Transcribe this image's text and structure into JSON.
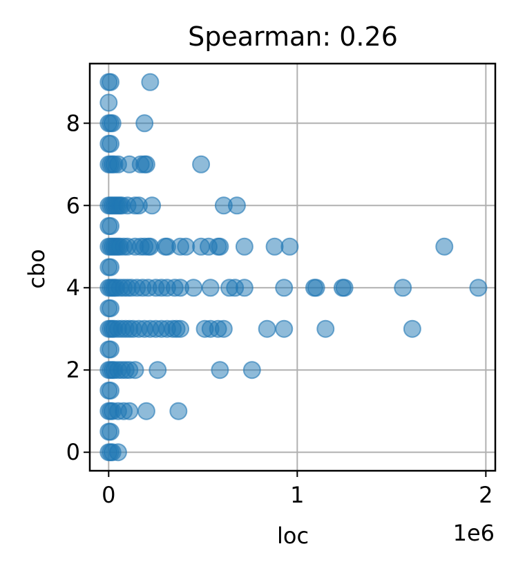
{
  "chart_data": {
    "type": "scatter",
    "title": "Spearman: 0.26",
    "xlabel": "loc",
    "ylabel": "cbo",
    "x_offset_label": "1e6",
    "xlim": [
      -0.1,
      2.05
    ],
    "ylim": [
      -0.45,
      9.45
    ],
    "x_ticks": [
      0,
      1,
      2
    ],
    "x_tick_labels": [
      "0",
      "1",
      "2"
    ],
    "y_ticks": [
      0,
      2,
      4,
      6,
      8
    ],
    "y_tick_labels": [
      "0",
      "2",
      "4",
      "6",
      "8"
    ],
    "grid": true,
    "marker_color": "#1f77b4",
    "marker_alpha": 0.5,
    "points": [
      {
        "x": 0.0,
        "y": 9.0
      },
      {
        "x": 0.01,
        "y": 9.0
      },
      {
        "x": 0.22,
        "y": 9.0
      },
      {
        "x": 0.0,
        "y": 8.5
      },
      {
        "x": 0.0,
        "y": 8.0
      },
      {
        "x": 0.01,
        "y": 8.0
      },
      {
        "x": 0.02,
        "y": 8.0
      },
      {
        "x": 0.19,
        "y": 8.0
      },
      {
        "x": 0.0,
        "y": 7.5
      },
      {
        "x": 0.01,
        "y": 7.5
      },
      {
        "x": 0.0,
        "y": 7.0
      },
      {
        "x": 0.01,
        "y": 7.0
      },
      {
        "x": 0.02,
        "y": 7.0
      },
      {
        "x": 0.03,
        "y": 7.0
      },
      {
        "x": 0.05,
        "y": 7.0
      },
      {
        "x": 0.11,
        "y": 7.0
      },
      {
        "x": 0.17,
        "y": 7.0
      },
      {
        "x": 0.19,
        "y": 7.0
      },
      {
        "x": 0.2,
        "y": 7.0
      },
      {
        "x": 0.49,
        "y": 7.0
      },
      {
        "x": 0.0,
        "y": 6.0
      },
      {
        "x": 0.01,
        "y": 6.0
      },
      {
        "x": 0.02,
        "y": 6.0
      },
      {
        "x": 0.03,
        "y": 6.0
      },
      {
        "x": 0.04,
        "y": 6.0
      },
      {
        "x": 0.05,
        "y": 6.0
      },
      {
        "x": 0.06,
        "y": 6.0
      },
      {
        "x": 0.07,
        "y": 6.0
      },
      {
        "x": 0.1,
        "y": 6.0
      },
      {
        "x": 0.14,
        "y": 6.0
      },
      {
        "x": 0.16,
        "y": 6.0
      },
      {
        "x": 0.23,
        "y": 6.0
      },
      {
        "x": 0.61,
        "y": 6.0
      },
      {
        "x": 0.68,
        "y": 6.0
      },
      {
        "x": 0.0,
        "y": 5.5
      },
      {
        "x": 0.01,
        "y": 5.5
      },
      {
        "x": 0.0,
        "y": 5.0
      },
      {
        "x": 0.01,
        "y": 5.0
      },
      {
        "x": 0.02,
        "y": 5.0
      },
      {
        "x": 0.03,
        "y": 5.0
      },
      {
        "x": 0.04,
        "y": 5.0
      },
      {
        "x": 0.05,
        "y": 5.0
      },
      {
        "x": 0.06,
        "y": 5.0
      },
      {
        "x": 0.08,
        "y": 5.0
      },
      {
        "x": 0.1,
        "y": 5.0
      },
      {
        "x": 0.14,
        "y": 5.0
      },
      {
        "x": 0.17,
        "y": 5.0
      },
      {
        "x": 0.19,
        "y": 5.0
      },
      {
        "x": 0.21,
        "y": 5.0
      },
      {
        "x": 0.22,
        "y": 5.0
      },
      {
        "x": 0.3,
        "y": 5.0
      },
      {
        "x": 0.31,
        "y": 5.0
      },
      {
        "x": 0.38,
        "y": 5.0
      },
      {
        "x": 0.41,
        "y": 5.0
      },
      {
        "x": 0.49,
        "y": 5.0
      },
      {
        "x": 0.53,
        "y": 5.0
      },
      {
        "x": 0.58,
        "y": 5.0
      },
      {
        "x": 0.59,
        "y": 5.0
      },
      {
        "x": 0.72,
        "y": 5.0
      },
      {
        "x": 0.88,
        "y": 5.0
      },
      {
        "x": 0.96,
        "y": 5.0
      },
      {
        "x": 1.78,
        "y": 5.0
      },
      {
        "x": 0.0,
        "y": 4.5
      },
      {
        "x": 0.01,
        "y": 4.5
      },
      {
        "x": 0.0,
        "y": 4.0
      },
      {
        "x": 0.01,
        "y": 4.0
      },
      {
        "x": 0.02,
        "y": 4.0
      },
      {
        "x": 0.03,
        "y": 4.0
      },
      {
        "x": 0.04,
        "y": 4.0
      },
      {
        "x": 0.06,
        "y": 4.0
      },
      {
        "x": 0.08,
        "y": 4.0
      },
      {
        "x": 0.1,
        "y": 4.0
      },
      {
        "x": 0.12,
        "y": 4.0
      },
      {
        "x": 0.15,
        "y": 4.0
      },
      {
        "x": 0.18,
        "y": 4.0
      },
      {
        "x": 0.21,
        "y": 4.0
      },
      {
        "x": 0.25,
        "y": 4.0
      },
      {
        "x": 0.28,
        "y": 4.0
      },
      {
        "x": 0.31,
        "y": 4.0
      },
      {
        "x": 0.35,
        "y": 4.0
      },
      {
        "x": 0.38,
        "y": 4.0
      },
      {
        "x": 0.45,
        "y": 4.0
      },
      {
        "x": 0.54,
        "y": 4.0
      },
      {
        "x": 0.64,
        "y": 4.0
      },
      {
        "x": 0.67,
        "y": 4.0
      },
      {
        "x": 0.72,
        "y": 4.0
      },
      {
        "x": 0.93,
        "y": 4.0
      },
      {
        "x": 1.09,
        "y": 4.0
      },
      {
        "x": 1.1,
        "y": 4.0
      },
      {
        "x": 1.24,
        "y": 4.0
      },
      {
        "x": 1.25,
        "y": 4.0
      },
      {
        "x": 1.56,
        "y": 4.0
      },
      {
        "x": 1.96,
        "y": 4.0
      },
      {
        "x": 0.0,
        "y": 3.5
      },
      {
        "x": 0.01,
        "y": 3.5
      },
      {
        "x": 0.0,
        "y": 3.0
      },
      {
        "x": 0.01,
        "y": 3.0
      },
      {
        "x": 0.02,
        "y": 3.0
      },
      {
        "x": 0.03,
        "y": 3.0
      },
      {
        "x": 0.05,
        "y": 3.0
      },
      {
        "x": 0.07,
        "y": 3.0
      },
      {
        "x": 0.09,
        "y": 3.0
      },
      {
        "x": 0.11,
        "y": 3.0
      },
      {
        "x": 0.13,
        "y": 3.0
      },
      {
        "x": 0.16,
        "y": 3.0
      },
      {
        "x": 0.19,
        "y": 3.0
      },
      {
        "x": 0.22,
        "y": 3.0
      },
      {
        "x": 0.25,
        "y": 3.0
      },
      {
        "x": 0.28,
        "y": 3.0
      },
      {
        "x": 0.31,
        "y": 3.0
      },
      {
        "x": 0.34,
        "y": 3.0
      },
      {
        "x": 0.36,
        "y": 3.0
      },
      {
        "x": 0.38,
        "y": 3.0
      },
      {
        "x": 0.51,
        "y": 3.0
      },
      {
        "x": 0.54,
        "y": 3.0
      },
      {
        "x": 0.58,
        "y": 3.0
      },
      {
        "x": 0.61,
        "y": 3.0
      },
      {
        "x": 0.84,
        "y": 3.0
      },
      {
        "x": 0.93,
        "y": 3.0
      },
      {
        "x": 1.15,
        "y": 3.0
      },
      {
        "x": 1.61,
        "y": 3.0
      },
      {
        "x": 0.0,
        "y": 2.5
      },
      {
        "x": 0.01,
        "y": 2.5
      },
      {
        "x": 0.0,
        "y": 2.0
      },
      {
        "x": 0.01,
        "y": 2.0
      },
      {
        "x": 0.02,
        "y": 2.0
      },
      {
        "x": 0.03,
        "y": 2.0
      },
      {
        "x": 0.05,
        "y": 2.0
      },
      {
        "x": 0.07,
        "y": 2.0
      },
      {
        "x": 0.09,
        "y": 2.0
      },
      {
        "x": 0.11,
        "y": 2.0
      },
      {
        "x": 0.14,
        "y": 2.0
      },
      {
        "x": 0.26,
        "y": 2.0
      },
      {
        "x": 0.59,
        "y": 2.0
      },
      {
        "x": 0.76,
        "y": 2.0
      },
      {
        "x": 0.0,
        "y": 1.5
      },
      {
        "x": 0.01,
        "y": 1.5
      },
      {
        "x": 0.0,
        "y": 1.0
      },
      {
        "x": 0.01,
        "y": 1.0
      },
      {
        "x": 0.02,
        "y": 1.0
      },
      {
        "x": 0.05,
        "y": 1.0
      },
      {
        "x": 0.08,
        "y": 1.0
      },
      {
        "x": 0.11,
        "y": 1.0
      },
      {
        "x": 0.2,
        "y": 1.0
      },
      {
        "x": 0.37,
        "y": 1.0
      },
      {
        "x": 0.0,
        "y": 0.5
      },
      {
        "x": 0.01,
        "y": 0.5
      },
      {
        "x": 0.0,
        "y": 0.0
      },
      {
        "x": 0.01,
        "y": 0.0
      },
      {
        "x": 0.02,
        "y": 0.0
      },
      {
        "x": 0.05,
        "y": 0.0
      }
    ]
  }
}
